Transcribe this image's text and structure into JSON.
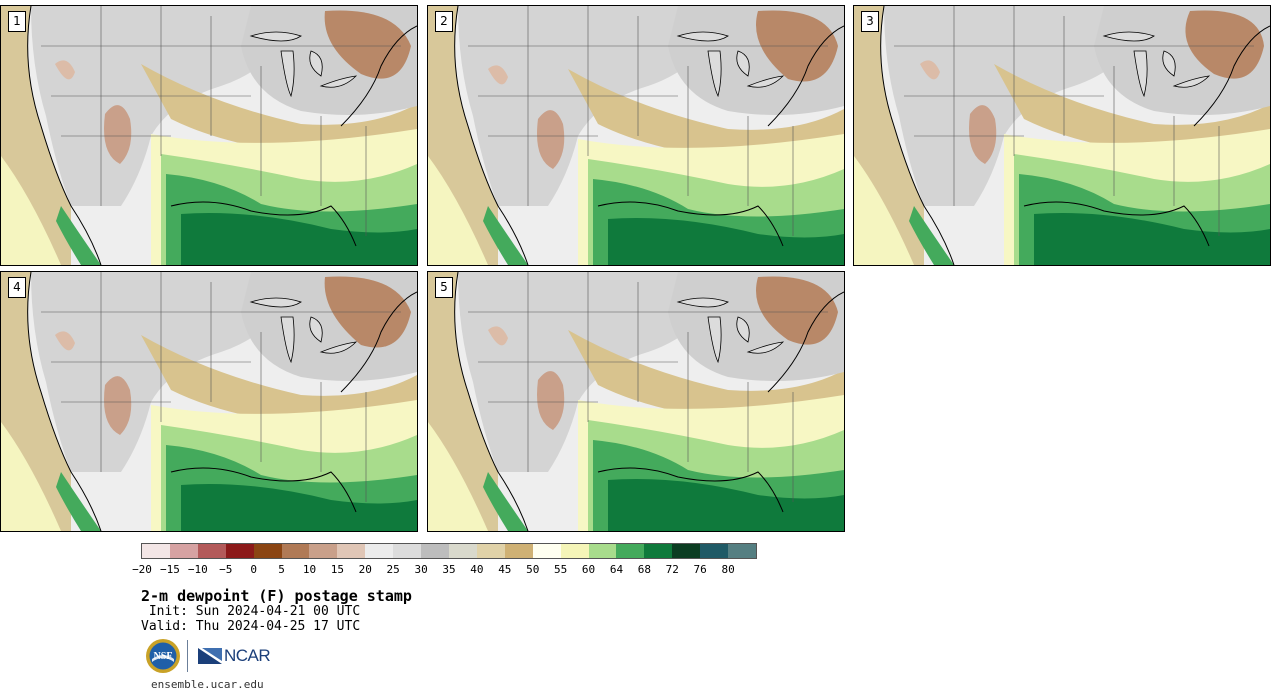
{
  "panels": [
    {
      "label": "1",
      "variant": 0
    },
    {
      "label": "2",
      "variant": 1
    },
    {
      "label": "3",
      "variant": 2
    },
    {
      "label": "4",
      "variant": 3
    },
    {
      "label": "5",
      "variant": 4
    }
  ],
  "colorbar": {
    "colors": [
      "#f3e6e6",
      "#d6a2a2",
      "#b35a5a",
      "#8c1a1a",
      "#8b4513",
      "#b07a56",
      "#c9a08a",
      "#e0c6b6",
      "#ececec",
      "#dcdcdc",
      "#bdbdbd",
      "#d9d9cc",
      "#e0d2a8",
      "#cfb174",
      "#fffff0",
      "#f5f5b8",
      "#a8dc8c",
      "#44aa5c",
      "#0f7a3c",
      "#0b3d22",
      "#1f5a66",
      "#557f82"
    ],
    "ticks": [
      "−20",
      "−15",
      "−10",
      "−5",
      "0",
      "5",
      "10",
      "15",
      "20",
      "25",
      "30",
      "35",
      "40",
      "45",
      "50",
      "55",
      "60",
      "64",
      "68",
      "72",
      "76",
      "80"
    ]
  },
  "title": "2-m dewpoint (F) postage stamp",
  "init": " Init: Sun 2024-04-21 00 UTC",
  "valid": "Valid: Thu 2024-04-25 17 UTC",
  "logos": {
    "nsf_text": "NSF",
    "ncar_text": "NCAR"
  },
  "site": "ensemble.ucar.edu"
}
